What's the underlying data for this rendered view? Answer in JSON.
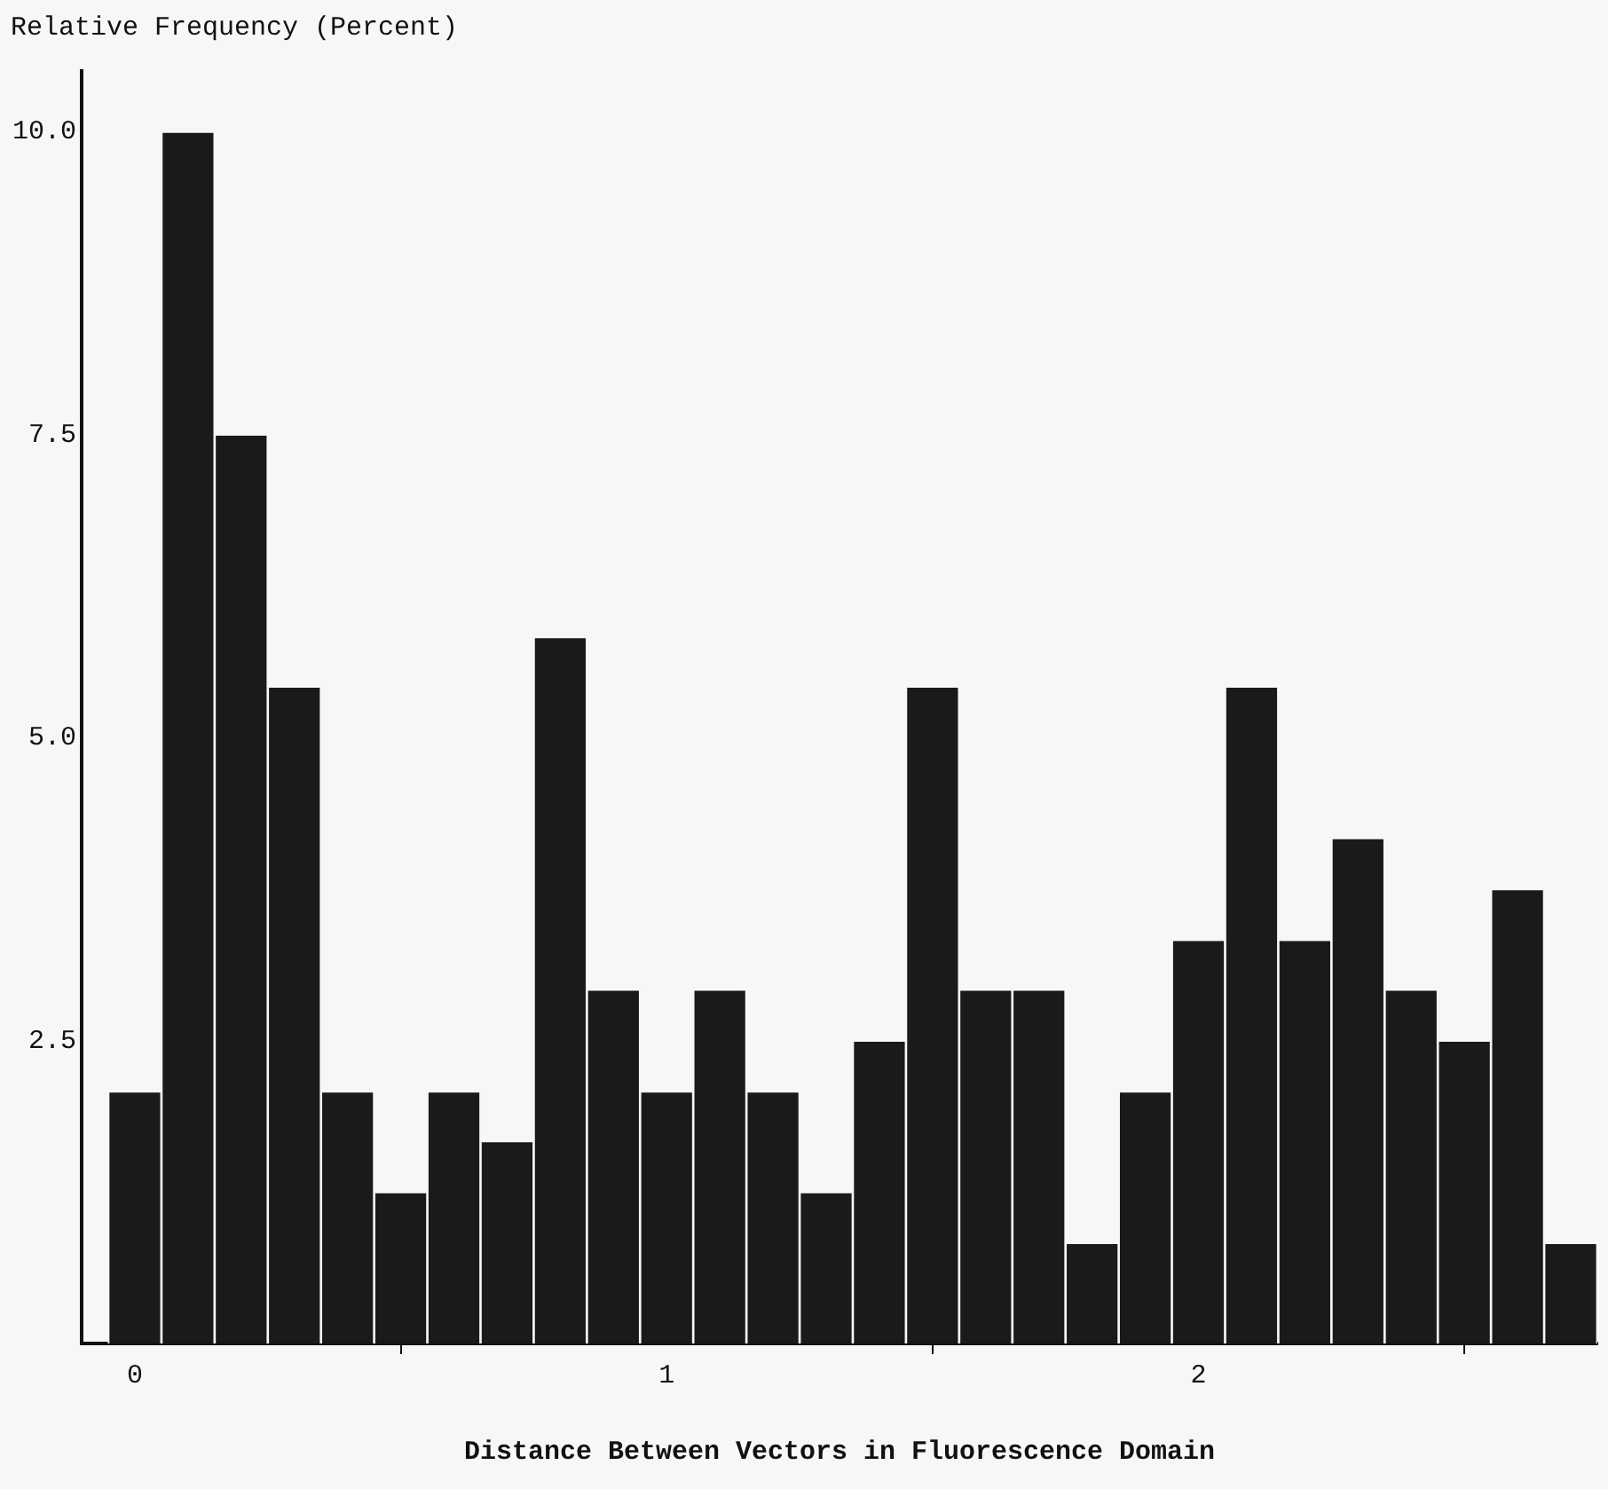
{
  "chart_data": {
    "type": "histogram",
    "ylabel": "Relative Frequency (Percent)",
    "xlabel": "Distance Between Vectors in Fluorescence Domain",
    "bins": [
      -0.05,
      0.05,
      0.15,
      0.25,
      0.35,
      0.45,
      0.55,
      0.65,
      0.75,
      0.85,
      0.95,
      1.05,
      1.15,
      1.25,
      1.35,
      1.45,
      1.55,
      1.65,
      1.75,
      1.85,
      1.95,
      2.05,
      2.15,
      2.25,
      2.35,
      2.45,
      2.55,
      2.65,
      2.75
    ],
    "values": [
      2.08,
      10.0,
      7.5,
      5.42,
      2.08,
      1.25,
      2.08,
      1.67,
      5.83,
      2.92,
      2.08,
      2.92,
      2.08,
      1.25,
      2.5,
      5.42,
      2.92,
      2.92,
      0.83,
      2.08,
      3.33,
      5.42,
      3.33,
      4.17,
      2.92,
      2.5,
      3.75,
      0.83
    ],
    "color": "#1a1a1a",
    "xlim": [
      -0.1,
      2.75
    ],
    "xticks": [
      0,
      1,
      2
    ],
    "ylim": [
      0,
      10.5
    ],
    "yticks": [
      {
        "value": 2.5,
        "label": "2.5"
      },
      {
        "value": 5,
        "label": "5.0"
      },
      {
        "value": 7.5,
        "label": "7.5"
      },
      {
        "value": 10,
        "label": "10.0"
      }
    ],
    "grid": false,
    "legend": false
  }
}
